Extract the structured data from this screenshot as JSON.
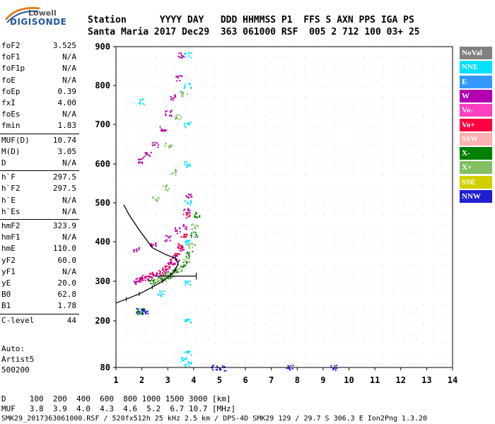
{
  "logo": {
    "line1": "Lowell",
    "line2": "DIGISONDE"
  },
  "header": {
    "row1": "Station      YYYY DAY   DDD HHMMSS P1  FFS S AXN PPS IGA PS",
    "row2": "Santa Maria 2017 Dec29  363 061000 RSF  005 2 712 100 03+ 25"
  },
  "params": [
    {
      "name": "foF2",
      "value": "3.525"
    },
    {
      "name": "foF1",
      "value": "N/A"
    },
    {
      "name": "foF1p",
      "value": "N/A"
    },
    {
      "name": "foE",
      "value": "N/A"
    },
    {
      "name": "foEp",
      "value": "0.39"
    },
    {
      "name": "fxI",
      "value": "4.00"
    },
    {
      "name": "foEs",
      "value": "N/A"
    },
    {
      "name": "fmin",
      "value": "1.83"
    },
    {
      "name": "MUF(D)",
      "value": "10.74"
    },
    {
      "name": "M(D)",
      "value": "3.05"
    },
    {
      "name": "D",
      "value": "N/A"
    },
    {
      "name": "h`F",
      "value": "297.5"
    },
    {
      "name": "h`F2",
      "value": "297.5"
    },
    {
      "name": "h`E",
      "value": "N/A"
    },
    {
      "name": "h`Es",
      "value": "N/A"
    },
    {
      "name": "hmF2",
      "value": "323.9"
    },
    {
      "name": "hmF1",
      "value": "N/A"
    },
    {
      "name": "hmE",
      "value": "110.0"
    },
    {
      "name": "yF2",
      "value": "60.0"
    },
    {
      "name": "yF1",
      "value": "N/A"
    },
    {
      "name": "yE",
      "value": "20.0"
    },
    {
      "name": "B0",
      "value": "62.8"
    },
    {
      "name": "B1",
      "value": "1.78"
    },
    {
      "name": "C-level",
      "value": "44"
    }
  ],
  "autoscale": {
    "l1": "Auto:",
    "l2": "Artist5",
    "l3": "500200"
  },
  "legend": [
    {
      "label": "NoVal",
      "bg": "#808080",
      "fg": "#ffffff"
    },
    {
      "label": "NNE",
      "bg": "#00e0ff",
      "fg": "#ffffff"
    },
    {
      "label": "E",
      "bg": "#3399ff",
      "fg": "#ffffff"
    },
    {
      "label": "W",
      "bg": "#b000b0",
      "fg": "#ffffff"
    },
    {
      "label": "Vo-",
      "bg": "#ff40c0",
      "fg": "#ffffff"
    },
    {
      "label": "Vo+",
      "bg": "#ff0040",
      "fg": "#ffffff"
    },
    {
      "label": "SSW",
      "bg": "#ffb0b0",
      "fg": "#ffffff"
    },
    {
      "label": "X-",
      "bg": "#008000",
      "fg": "#ffffff"
    },
    {
      "label": "X+",
      "bg": "#80c060",
      "fg": "#ffffff"
    },
    {
      "label": "SSE",
      "bg": "#d0d000",
      "fg": "#ffffff"
    },
    {
      "label": "NNW",
      "bg": "#2020d0",
      "fg": "#ffffff"
    }
  ],
  "footer": {
    "d_row": "D     100  200  400  600  800 1000 1500 3000 [km]",
    "muf_row": "MUF   3.8  3.9  4.0  4.3  4.6  5.2  6.7 10.7 [MHz]",
    "info": "SMK29_2017363061000.RSF / 520fx512h 25 kHz 2.5 km / DPS-4D SMK29 129 / 29.7 S 306.3 E Ion2Png 1.3.20"
  },
  "chart_data": {
    "type": "scatter",
    "title": "",
    "xlabel": "",
    "ylabel": "",
    "xlim": [
      1,
      14
    ],
    "ylim": [
      80,
      900
    ],
    "xticks": [
      "1",
      "2",
      "3",
      "4",
      "5",
      "6",
      "7",
      "8",
      "9",
      "10",
      "11",
      "12",
      "13",
      "14"
    ],
    "yticks": [
      "80",
      "200",
      "300",
      "400",
      "500",
      "600",
      "700",
      "800",
      "900"
    ],
    "ytick_values": [
      80,
      200,
      300,
      400,
      500,
      600,
      700,
      800,
      900
    ],
    "series": [
      {
        "name": "Vo+",
        "color": "#ff0040",
        "points": [
          [
            1.9,
            305
          ],
          [
            2.1,
            310
          ],
          [
            2.4,
            318
          ],
          [
            2.7,
            325
          ],
          [
            3.0,
            338
          ],
          [
            3.2,
            350
          ],
          [
            3.35,
            365
          ],
          [
            3.5,
            390
          ],
          [
            3.6,
            420
          ],
          [
            3.7,
            470
          ]
        ]
      },
      {
        "name": "W",
        "color": "#b000b0",
        "points": [
          [
            1.8,
            300
          ],
          [
            2.0,
            305
          ],
          [
            2.3,
            310
          ],
          [
            2.6,
            318
          ],
          [
            2.9,
            330
          ],
          [
            3.1,
            345
          ],
          [
            3.3,
            360
          ],
          [
            3.5,
            385
          ],
          [
            3.7,
            440
          ],
          [
            3.8,
            520
          ],
          [
            1.8,
            380
          ],
          [
            2.4,
            395
          ],
          [
            3.0,
            410
          ],
          [
            3.4,
            430
          ],
          [
            3.7,
            480
          ],
          [
            1.9,
            610
          ],
          [
            2.2,
            625
          ],
          [
            2.5,
            650
          ],
          [
            2.8,
            690
          ],
          [
            3.0,
            730
          ],
          [
            3.2,
            770
          ],
          [
            3.4,
            820
          ],
          [
            3.5,
            880
          ]
        ]
      },
      {
        "name": "X-",
        "color": "#008000",
        "points": [
          [
            2.4,
            300
          ],
          [
            2.7,
            305
          ],
          [
            3.0,
            315
          ],
          [
            3.3,
            325
          ],
          [
            3.6,
            345
          ],
          [
            3.8,
            370
          ],
          [
            4.0,
            420
          ],
          [
            4.1,
            470
          ],
          [
            1.9,
            225
          ],
          [
            1.95,
            224
          ]
        ]
      },
      {
        "name": "X+",
        "color": "#80c060",
        "points": [
          [
            2.5,
            302
          ],
          [
            2.8,
            308
          ],
          [
            3.1,
            318
          ],
          [
            3.4,
            330
          ],
          [
            3.7,
            355
          ],
          [
            3.9,
            390
          ],
          [
            4.0,
            440
          ],
          [
            2.5,
            510
          ],
          [
            2.9,
            540
          ],
          [
            3.2,
            580
          ],
          [
            3.0,
            650
          ],
          [
            3.4,
            720
          ],
          [
            3.6,
            780
          ]
        ]
      },
      {
        "name": "NNE",
        "color": "#00e0ff",
        "points": [
          [
            3.75,
            880
          ],
          [
            3.75,
            800
          ],
          [
            3.75,
            700
          ],
          [
            3.75,
            600
          ],
          [
            3.75,
            500
          ],
          [
            3.75,
            400
          ],
          [
            3.75,
            300
          ],
          [
            3.75,
            200
          ],
          [
            3.75,
            120
          ],
          [
            3.75,
            90
          ],
          [
            2.0,
            760
          ],
          [
            2.7,
            270
          ],
          [
            3.6,
            100
          ]
        ]
      },
      {
        "name": "NNW",
        "color": "#2020d0",
        "points": [
          [
            1.9,
            226
          ],
          [
            2.1,
            225
          ],
          [
            4.8,
            80
          ],
          [
            5.1,
            80
          ],
          [
            7.7,
            80
          ],
          [
            9.4,
            80
          ]
        ]
      }
    ],
    "profile_line": [
      [
        1.0,
        245
      ],
      [
        1.4,
        255
      ],
      [
        1.9,
        268
      ],
      [
        2.4,
        285
      ],
      [
        2.8,
        300
      ],
      [
        3.1,
        315
      ],
      [
        3.3,
        330
      ],
      [
        3.4,
        345
      ],
      [
        3.3,
        358
      ],
      [
        2.9,
        368
      ],
      [
        2.4,
        385
      ],
      [
        1.9,
        430
      ],
      [
        1.5,
        470
      ],
      [
        1.3,
        495
      ]
    ],
    "error_bar": {
      "x1": 2.55,
      "x2": 4.1,
      "y": 313
    }
  }
}
